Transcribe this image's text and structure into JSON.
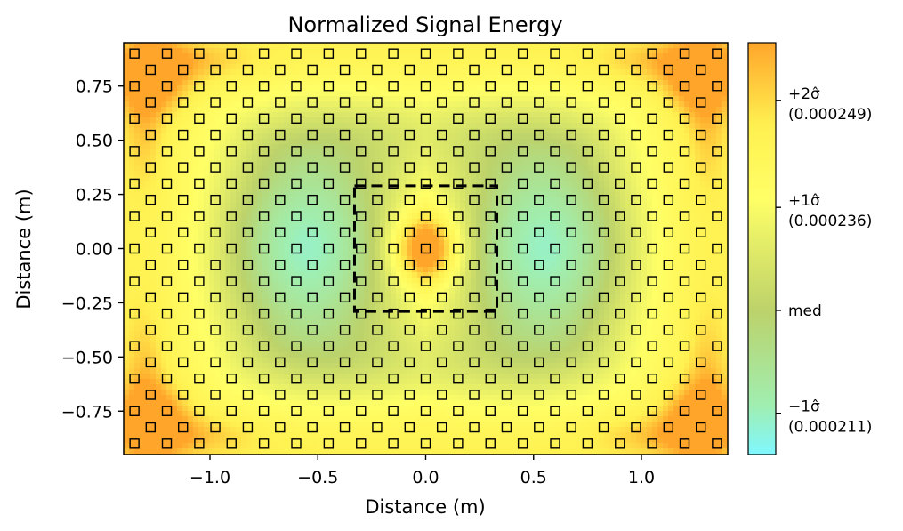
{
  "chart_data": {
    "type": "heatmap",
    "title": "Normalized Signal Energy",
    "xlabel": "Distance (m)",
    "ylabel": "Distance (m)",
    "xlim": [
      -1.4,
      1.4
    ],
    "ylim": [
      -0.95,
      0.95
    ],
    "x_ticks": [
      -1.0,
      -0.5,
      0.0,
      0.5,
      1.0
    ],
    "x_tick_labels": [
      "−1.0",
      "−0.5",
      "0.0",
      "0.5",
      "1.0"
    ],
    "y_ticks": [
      0.75,
      0.5,
      0.25,
      0.0,
      -0.25,
      -0.5,
      -0.75
    ],
    "y_tick_labels": [
      "0.75",
      "0.50",
      "0.25",
      "0.00",
      "−0.25",
      "−0.50",
      "−0.75"
    ],
    "colorbar": {
      "range": [
        0.000206,
        0.000256
      ],
      "ticks": [
        {
          "value": 0.000249,
          "label1": "+2σ̂",
          "label2": "(0.000249)"
        },
        {
          "value": 0.000236,
          "label1": "+1σ̂",
          "label2": "(0.000236)"
        },
        {
          "value": 0.0002235,
          "label1": "med",
          "label2": ""
        },
        {
          "value": 0.000211,
          "label1": "−1σ̂",
          "label2": "(0.000211)"
        }
      ],
      "colors": [
        "#80f7ff",
        "#bcd26a",
        "#ffff66",
        "#ffa62a"
      ]
    },
    "markers": {
      "shape": "square",
      "x_spacing": 0.075,
      "y_spacing": 0.075,
      "x_start": -1.35,
      "y_start": -0.9,
      "x_end": 1.35,
      "y_end": 0.9
    },
    "region": {
      "x": [
        -0.33,
        0.33
      ],
      "y": [
        -0.29,
        0.29
      ],
      "style": "dashed"
    }
  }
}
